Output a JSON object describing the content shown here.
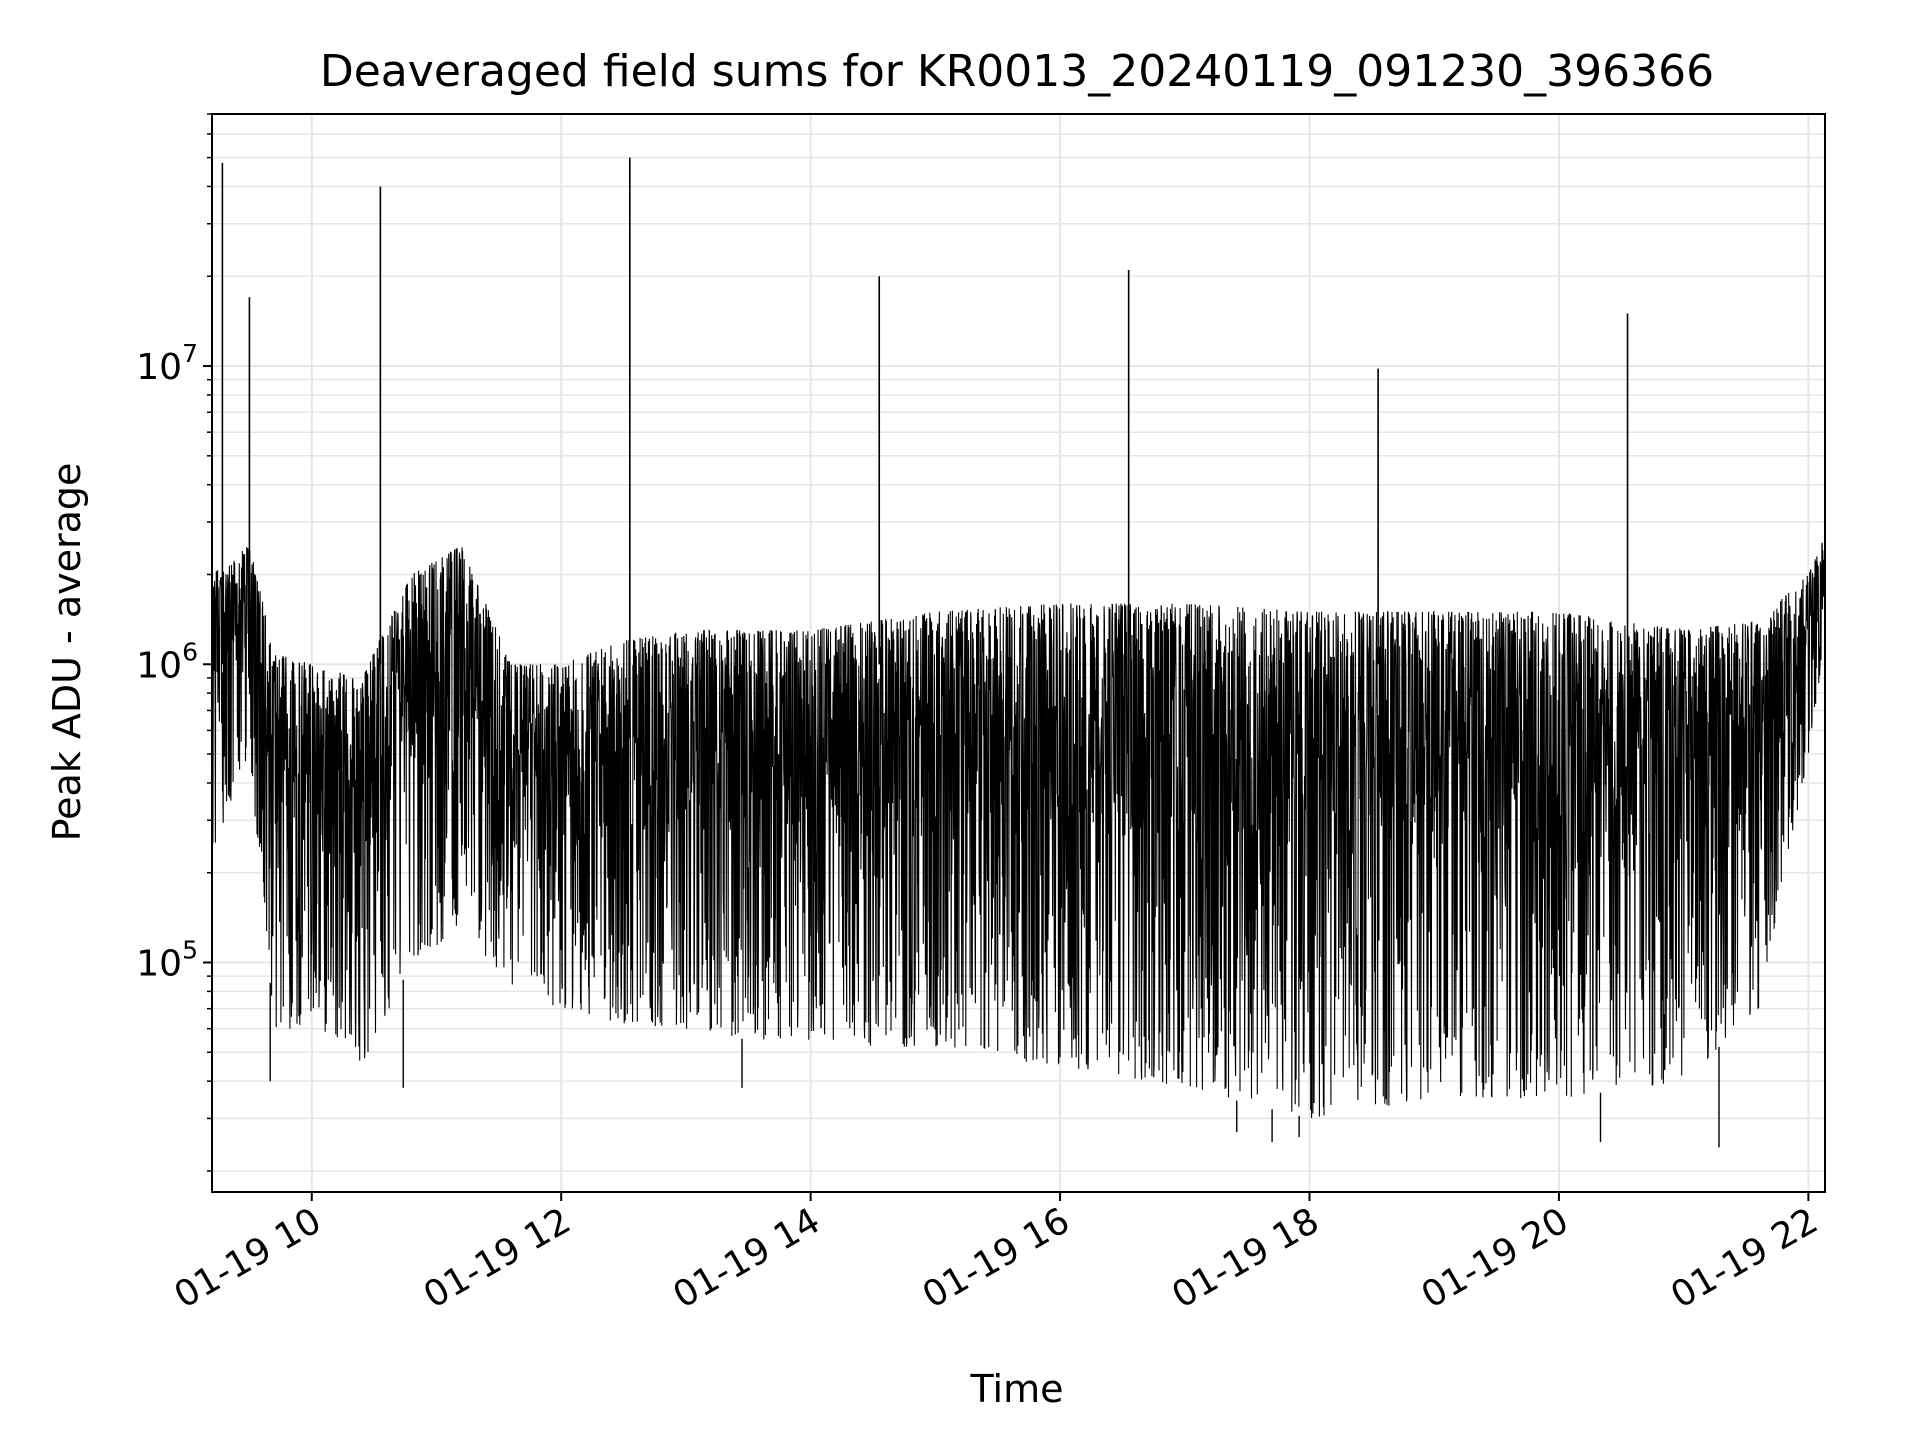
{
  "chart_data": {
    "type": "line",
    "title": "Deaveraged field sums for KR0013_20240119_091230_396366",
    "xlabel": "Time",
    "ylabel": "Peak ADU - average",
    "yscale": "log",
    "ylim": [
      17000,
      70000000
    ],
    "xlim": [
      "2024-01-19 09:12",
      "2024-01-19 22:08"
    ],
    "grid": true,
    "line_color": "#000000",
    "grid_color": "#e6e6e6",
    "x_ticks": [
      {
        "value": "2024-01-19 10:00",
        "label": "01-19 10"
      },
      {
        "value": "2024-01-19 12:00",
        "label": "01-19 12"
      },
      {
        "value": "2024-01-19 14:00",
        "label": "01-19 14"
      },
      {
        "value": "2024-01-19 16:00",
        "label": "01-19 16"
      },
      {
        "value": "2024-01-19 18:00",
        "label": "01-19 18"
      },
      {
        "value": "2024-01-19 20:00",
        "label": "01-19 20"
      },
      {
        "value": "2024-01-19 22:00",
        "label": "01-19 22"
      }
    ],
    "y_ticks": [
      {
        "value": 100000,
        "base": "10",
        "exp": "5"
      },
      {
        "value": 1000000,
        "base": "10",
        "exp": "6"
      },
      {
        "value": 10000000,
        "base": "10",
        "exp": "7"
      }
    ],
    "envelope": [
      {
        "x": "2024-01-19 09:12",
        "low": 230000,
        "high": 2000000
      },
      {
        "x": "2024-01-19 09:30",
        "low": 500000,
        "high": 2500000
      },
      {
        "x": "2024-01-19 09:42",
        "low": 60000,
        "high": 1100000
      },
      {
        "x": "2024-01-19 10:00",
        "low": 60000,
        "high": 1000000
      },
      {
        "x": "2024-01-19 10:24",
        "low": 45000,
        "high": 900000
      },
      {
        "x": "2024-01-19 10:48",
        "low": 100000,
        "high": 2000000
      },
      {
        "x": "2024-01-19 11:12",
        "low": 130000,
        "high": 2500000
      },
      {
        "x": "2024-01-19 11:36",
        "low": 80000,
        "high": 1000000
      },
      {
        "x": "2024-01-19 12:00",
        "low": 70000,
        "high": 1000000
      },
      {
        "x": "2024-01-19 12:30",
        "low": 60000,
        "high": 1200000
      },
      {
        "x": "2024-01-19 13:00",
        "low": 60000,
        "high": 1300000
      },
      {
        "x": "2024-01-19 13:30",
        "low": 55000,
        "high": 1300000
      },
      {
        "x": "2024-01-19 14:00",
        "low": 55000,
        "high": 1300000
      },
      {
        "x": "2024-01-19 15:00",
        "low": 50000,
        "high": 1500000
      },
      {
        "x": "2024-01-19 16:00",
        "low": 45000,
        "high": 1600000
      },
      {
        "x": "2024-01-19 17:00",
        "low": 38000,
        "high": 1600000
      },
      {
        "x": "2024-01-19 18:00",
        "low": 30000,
        "high": 1500000
      },
      {
        "x": "2024-01-19 19:00",
        "low": 35000,
        "high": 1500000
      },
      {
        "x": "2024-01-19 20:00",
        "low": 35000,
        "high": 1500000
      },
      {
        "x": "2024-01-19 21:00",
        "low": 40000,
        "high": 1300000
      },
      {
        "x": "2024-01-19 21:36",
        "low": 70000,
        "high": 1400000
      },
      {
        "x": "2024-01-19 22:00",
        "low": 500000,
        "high": 2000000
      },
      {
        "x": "2024-01-19 22:08",
        "low": 1100000,
        "high": 2700000
      }
    ],
    "dips": [
      {
        "x": "2024-01-19 09:40",
        "y": 40000
      },
      {
        "x": "2024-01-19 10:24",
        "y": 45000
      },
      {
        "x": "2024-01-19 10:44",
        "y": 38000
      },
      {
        "x": "2024-01-19 13:27",
        "y": 38000
      },
      {
        "x": "2024-01-19 17:25",
        "y": 27000
      },
      {
        "x": "2024-01-19 17:42",
        "y": 25000
      },
      {
        "x": "2024-01-19 17:55",
        "y": 26000
      },
      {
        "x": "2024-01-19 20:20",
        "y": 25000
      },
      {
        "x": "2024-01-19 21:17",
        "y": 24000
      }
    ],
    "spikes": [
      {
        "x": "2024-01-19 09:17",
        "y": 48000000
      },
      {
        "x": "2024-01-19 09:30",
        "y": 17000000
      },
      {
        "x": "2024-01-19 10:33",
        "y": 40000000
      },
      {
        "x": "2024-01-19 12:33",
        "y": 50000000
      },
      {
        "x": "2024-01-19 14:33",
        "y": 20000000
      },
      {
        "x": "2024-01-19 16:33",
        "y": 21000000
      },
      {
        "x": "2024-01-19 18:33",
        "y": 9800000
      },
      {
        "x": "2024-01-19 20:33",
        "y": 15000000
      }
    ]
  }
}
